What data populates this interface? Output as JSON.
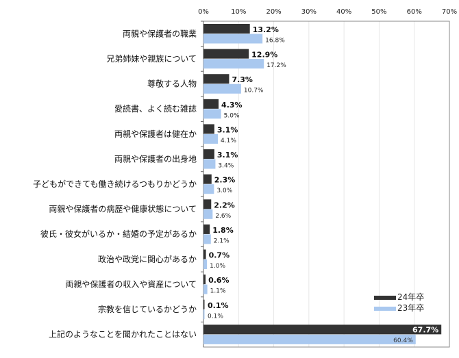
{
  "chart_data": {
    "type": "bar",
    "orientation": "horizontal",
    "categories": [
      "両親や保護者の職業",
      "兄弟姉妹や親族について",
      "尊敬する人物",
      "愛読書、よく読む雑誌",
      "両親や保護者は健在か",
      "両親や保護者の出身地",
      "子どもができても働き続けるつもりかどうか",
      "両親や保護者の病歴や健康状態について",
      "彼氏・彼女がいるか・結婚の予定があるか",
      "政治や政党に関心があるか",
      "両親や保護者の収入や資産について",
      "宗教を信じているかどうか",
      "上記のようなことを聞かれたことはない"
    ],
    "series": [
      {
        "name": "24年卒",
        "color": "#333333",
        "values": [
          13.2,
          12.9,
          7.3,
          4.3,
          3.1,
          3.1,
          2.3,
          2.2,
          1.8,
          0.7,
          0.6,
          0.1,
          67.7
        ]
      },
      {
        "name": "23年卒",
        "color": "#a9c8ef",
        "values": [
          16.8,
          17.2,
          10.7,
          5.0,
          4.1,
          3.4,
          3.0,
          2.6,
          2.1,
          1.0,
          1.1,
          0.1,
          60.4
        ]
      }
    ],
    "xlim": [
      0,
      70
    ],
    "xticks": [
      "0%",
      "10%",
      "20%",
      "30%",
      "40%",
      "50%",
      "60%",
      "70%"
    ],
    "grid": true,
    "legend_position": "bottom-right",
    "title": "",
    "xlabel": "",
    "ylabel": ""
  }
}
